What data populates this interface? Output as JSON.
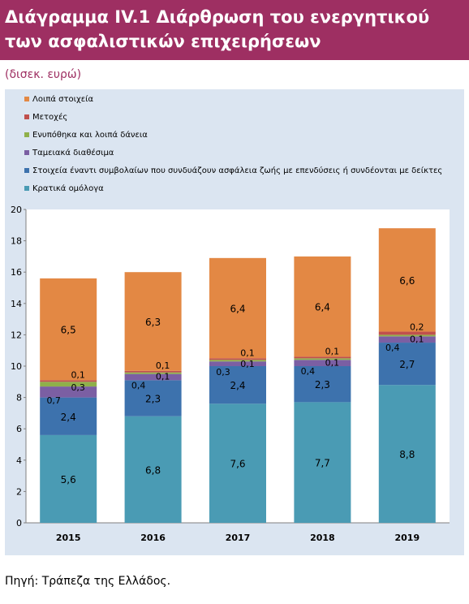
{
  "header": {
    "title": "Διάγραμμα IV.1 Διάρθρωση του ενεργητικού των ασφαλιστικών επιχειρήσεων",
    "unit": "(δισεκ. ευρώ)"
  },
  "footer": {
    "source": "Πηγή: Τράπεζα της Ελλάδος."
  },
  "colors": {
    "banner": "#9e2f62",
    "panel": "#dbe5f1",
    "plot_bg": "#ffffff"
  },
  "chart_data": {
    "type": "bar",
    "stacked": true,
    "categories": [
      "2015",
      "2016",
      "2017",
      "2018",
      "2019"
    ],
    "series": [
      {
        "name": "Κρατικά ομόλογα",
        "color": "#4a9bb4",
        "values": [
          5.6,
          6.8,
          7.6,
          7.7,
          8.8
        ]
      },
      {
        "name": "Στοιχεία έναντι συμβολαίων που συνδυάζουν ασφάλεια ζωής με επενδύσεις ή συνδέονται με δείκτες",
        "color": "#3d72ad",
        "values": [
          2.4,
          2.3,
          2.4,
          2.3,
          2.7
        ]
      },
      {
        "name": "Ταμειακά διαθέσιμα",
        "color": "#7b5fa3",
        "values": [
          0.7,
          0.4,
          0.3,
          0.4,
          0.4
        ]
      },
      {
        "name": "Ενυπόθηκα και λοιπά δάνεια",
        "color": "#8fb04a",
        "values": [
          0.3,
          0.1,
          0.1,
          0.1,
          0.1
        ]
      },
      {
        "name": "Μετοχές",
        "color": "#c0504d",
        "values": [
          0.1,
          0.1,
          0.1,
          0.1,
          0.2
        ]
      },
      {
        "name": "Λοιπά στοιχεία",
        "color": "#e38844",
        "values": [
          6.5,
          6.3,
          6.4,
          6.4,
          6.6
        ]
      }
    ],
    "legend": {
      "position": "top-left",
      "order": [
        "Λοιπά στοιχεία",
        "Μετοχές",
        "Ενυπόθηκα και λοιπά δάνεια",
        "Ταμειακά διαθέσιμα",
        "Στοιχεία έναντι συμβολαίων που συνδυάζουν ασφάλεια ζωής με επενδύσεις ή συνδέονται με δείκτες",
        "Κρατικά ομόλογα"
      ]
    },
    "y_ticks": [
      "0",
      "2",
      "4",
      "6",
      "8",
      "10",
      "12",
      "14",
      "16",
      "18",
      "20"
    ],
    "ylim": [
      0,
      20
    ],
    "grid": false,
    "xlabel": "",
    "ylabel": ""
  }
}
